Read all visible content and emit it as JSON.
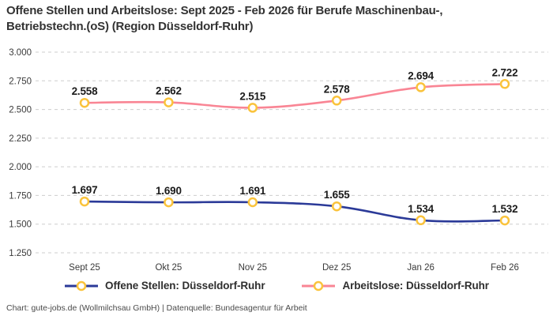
{
  "title": "Offene Stellen und Arbeitslose: Sept 2025 - Feb 2026 für Berufe Maschinenbau-, Betriebstechn.(oS) (Region Düsseldorf-Ruhr)",
  "footer": "Chart: gute-jobs.de (Wollmilchsau GmbH) | Datenquelle: Bundesagentur für Arbeit",
  "colors": {
    "open_positions_line": "#2B3A98",
    "unemployed_line": "#F98594",
    "marker_ring": "#FAC33C",
    "marker_fill": "#FFFFFF",
    "grid": "#CDCDCD",
    "data_label": "#1B1B1B",
    "axis_text": "#3A3A3A"
  },
  "chart_data": {
    "type": "line",
    "title": "Offene Stellen und Arbeitslose: Sept 2025 - Feb 2026 für Berufe Maschinenbau-, Betriebstechn.(oS) (Region Düsseldorf-Ruhr)",
    "x": [
      "Sept 25",
      "Okt 25",
      "Nov 25",
      "Dez 25",
      "Jan 26",
      "Feb 26"
    ],
    "series": [
      {
        "name": "Offene Stellen: Düsseldorf-Ruhr",
        "values": [
          1697,
          1690,
          1691,
          1655,
          1534,
          1532
        ],
        "point_labels": [
          "1.697",
          "1.690",
          "1.691",
          "1.655",
          "1.534",
          "1.532"
        ],
        "color_key": "open_positions_line"
      },
      {
        "name": "Arbeitslose: Düsseldorf-Ruhr",
        "values": [
          2558,
          2562,
          2515,
          2578,
          2694,
          2722
        ],
        "point_labels": [
          "2.558",
          "2.562",
          "2.515",
          "2.578",
          "2.694",
          "2.722"
        ],
        "color_key": "unemployed_line"
      }
    ],
    "ylim": [
      1250,
      3000
    ],
    "ytick_step": 250,
    "ytick_labels": [
      "1.250",
      "1.500",
      "1.750",
      "2.000",
      "2.250",
      "2.500",
      "2.750",
      "3.000"
    ],
    "grid": "dashed-horizontal",
    "legend_position": "bottom",
    "marker_style": "ring-circle"
  }
}
